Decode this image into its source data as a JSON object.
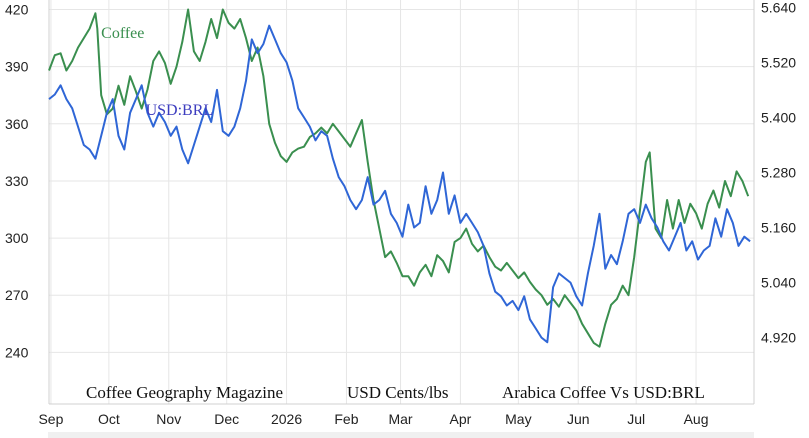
{
  "chart_data": {
    "type": "line",
    "x_axis": {
      "type": "time",
      "range": [
        "2025-08-31",
        "2026-08-31"
      ],
      "ticks": [
        {
          "label": "Sep",
          "date": "2025-09-01"
        },
        {
          "label": "Oct",
          "date": "2025-10-01"
        },
        {
          "label": "Nov",
          "date": "2025-11-01"
        },
        {
          "label": "Dec",
          "date": "2025-12-01"
        },
        {
          "label": "2026",
          "date": "2026-01-01"
        },
        {
          "label": "Feb",
          "date": "2026-02-01"
        },
        {
          "label": "Mar",
          "date": "2026-03-01"
        },
        {
          "label": "Apr",
          "date": "2026-04-01"
        },
        {
          "label": "May",
          "date": "2026-05-01"
        },
        {
          "label": "Jun",
          "date": "2026-06-01"
        },
        {
          "label": "Jul",
          "date": "2026-07-01"
        },
        {
          "label": "Aug",
          "date": "2026-08-01"
        }
      ]
    },
    "y_left": {
      "range": [
        215,
        425
      ],
      "ticks": [
        "420",
        "390",
        "360",
        "330",
        "300",
        "270",
        "240"
      ],
      "tick_values": [
        420,
        390,
        360,
        330,
        300,
        270,
        240
      ]
    },
    "y_right": {
      "range": [
        4.784,
        5.656
      ],
      "ticks": [
        "5.640",
        "5.520",
        "5.400",
        "5.280",
        "5.160",
        "5.040",
        "4.920"
      ],
      "tick_values": [
        5.64,
        5.52,
        5.4,
        5.28,
        5.16,
        5.04,
        4.92
      ]
    },
    "grid": true,
    "series": [
      {
        "name": "Coffee",
        "axis": "left",
        "color": "#3a8f4f",
        "points": [
          [
            "2025-08-31",
            388
          ],
          [
            "2025-09-03",
            396
          ],
          [
            "2025-09-06",
            397
          ],
          [
            "2025-09-09",
            388
          ],
          [
            "2025-09-12",
            393
          ],
          [
            "2025-09-15",
            400
          ],
          [
            "2025-09-18",
            405
          ],
          [
            "2025-09-21",
            410
          ],
          [
            "2025-09-24",
            418
          ],
          [
            "2025-09-25",
            410
          ],
          [
            "2025-09-27",
            375
          ],
          [
            "2025-09-30",
            365
          ],
          [
            "2025-10-03",
            368
          ],
          [
            "2025-10-06",
            380
          ],
          [
            "2025-10-09",
            370
          ],
          [
            "2025-10-12",
            385
          ],
          [
            "2025-10-15",
            377
          ],
          [
            "2025-10-18",
            368
          ],
          [
            "2025-10-21",
            378
          ],
          [
            "2025-10-24",
            393
          ],
          [
            "2025-10-27",
            398
          ],
          [
            "2025-10-30",
            392
          ],
          [
            "2025-11-02",
            381
          ],
          [
            "2025-11-05",
            390
          ],
          [
            "2025-11-08",
            403
          ],
          [
            "2025-11-11",
            420
          ],
          [
            "2025-11-14",
            398
          ],
          [
            "2025-11-17",
            393
          ],
          [
            "2025-11-20",
            403
          ],
          [
            "2025-11-23",
            415
          ],
          [
            "2025-11-26",
            405
          ],
          [
            "2025-11-29",
            420
          ],
          [
            "2025-12-02",
            413
          ],
          [
            "2025-12-05",
            410
          ],
          [
            "2025-12-08",
            415
          ],
          [
            "2025-12-11",
            405
          ],
          [
            "2025-12-14",
            393
          ],
          [
            "2025-12-17",
            400
          ],
          [
            "2025-12-20",
            385
          ],
          [
            "2025-12-23",
            360
          ],
          [
            "2025-12-26",
            350
          ],
          [
            "2025-12-29",
            343
          ],
          [
            "2026-01-01",
            340
          ],
          [
            "2026-01-04",
            345
          ],
          [
            "2026-01-07",
            347
          ],
          [
            "2026-01-10",
            348
          ],
          [
            "2026-01-13",
            353
          ],
          [
            "2026-01-16",
            355
          ],
          [
            "2026-01-19",
            358
          ],
          [
            "2026-01-22",
            355
          ],
          [
            "2026-01-25",
            360
          ],
          [
            "2026-01-28",
            356
          ],
          [
            "2026-01-31",
            352
          ],
          [
            "2026-02-03",
            348
          ],
          [
            "2026-02-06",
            355
          ],
          [
            "2026-02-09",
            362
          ],
          [
            "2026-02-12",
            340
          ],
          [
            "2026-02-15",
            320
          ],
          [
            "2026-02-18",
            305
          ],
          [
            "2026-02-21",
            290
          ],
          [
            "2026-02-24",
            293
          ],
          [
            "2026-02-27",
            287
          ],
          [
            "2026-03-02",
            280
          ],
          [
            "2026-03-05",
            280
          ],
          [
            "2026-03-08",
            275
          ],
          [
            "2026-03-11",
            282
          ],
          [
            "2026-03-14",
            286
          ],
          [
            "2026-03-17",
            280
          ],
          [
            "2026-03-20",
            291
          ],
          [
            "2026-03-23",
            288
          ],
          [
            "2026-03-26",
            282
          ],
          [
            "2026-03-29",
            298
          ],
          [
            "2026-04-01",
            300
          ],
          [
            "2026-04-04",
            305
          ],
          [
            "2026-04-07",
            297
          ],
          [
            "2026-04-10",
            293
          ],
          [
            "2026-04-13",
            296
          ],
          [
            "2026-04-16",
            290
          ],
          [
            "2026-04-19",
            285
          ],
          [
            "2026-04-22",
            283
          ],
          [
            "2026-04-25",
            287
          ],
          [
            "2026-04-28",
            283
          ],
          [
            "2026-05-01",
            279
          ],
          [
            "2026-05-04",
            282
          ],
          [
            "2026-05-07",
            277
          ],
          [
            "2026-05-10",
            273
          ],
          [
            "2026-05-13",
            270
          ],
          [
            "2026-05-16",
            265
          ],
          [
            "2026-05-19",
            268
          ],
          [
            "2026-05-22",
            264
          ],
          [
            "2026-05-25",
            270
          ],
          [
            "2026-05-28",
            266
          ],
          [
            "2026-05-31",
            262
          ],
          [
            "2026-06-03",
            255
          ],
          [
            "2026-06-06",
            250
          ],
          [
            "2026-06-09",
            245
          ],
          [
            "2026-06-12",
            243
          ],
          [
            "2026-06-15",
            255
          ],
          [
            "2026-06-18",
            265
          ],
          [
            "2026-06-21",
            268
          ],
          [
            "2026-06-24",
            275
          ],
          [
            "2026-06-27",
            270
          ],
          [
            "2026-06-30",
            290
          ],
          [
            "2026-07-03",
            315
          ],
          [
            "2026-07-06",
            340
          ],
          [
            "2026-07-08",
            345
          ],
          [
            "2026-07-11",
            305
          ],
          [
            "2026-07-14",
            300
          ],
          [
            "2026-07-17",
            320
          ],
          [
            "2026-07-20",
            305
          ],
          [
            "2026-07-23",
            320
          ],
          [
            "2026-07-26",
            308
          ],
          [
            "2026-07-29",
            318
          ],
          [
            "2026-08-01",
            313
          ],
          [
            "2026-08-04",
            305
          ],
          [
            "2026-08-07",
            318
          ],
          [
            "2026-08-10",
            325
          ],
          [
            "2026-08-13",
            316
          ],
          [
            "2026-08-16",
            330
          ],
          [
            "2026-08-19",
            322
          ],
          [
            "2026-08-22",
            335
          ],
          [
            "2026-08-25",
            330
          ],
          [
            "2026-08-28",
            322
          ]
        ]
      },
      {
        "name": "USD:BRL",
        "axis": "right",
        "color": "#2f66d6",
        "points": [
          [
            "2025-08-31",
            5.44
          ],
          [
            "2025-09-03",
            5.45
          ],
          [
            "2025-09-06",
            5.47
          ],
          [
            "2025-09-09",
            5.44
          ],
          [
            "2025-09-12",
            5.42
          ],
          [
            "2025-09-15",
            5.38
          ],
          [
            "2025-09-18",
            5.34
          ],
          [
            "2025-09-21",
            5.33
          ],
          [
            "2025-09-24",
            5.31
          ],
          [
            "2025-09-27",
            5.36
          ],
          [
            "2025-09-30",
            5.41
          ],
          [
            "2025-10-03",
            5.44
          ],
          [
            "2025-10-06",
            5.36
          ],
          [
            "2025-10-09",
            5.33
          ],
          [
            "2025-10-12",
            5.41
          ],
          [
            "2025-10-15",
            5.44
          ],
          [
            "2025-10-18",
            5.47
          ],
          [
            "2025-10-21",
            5.41
          ],
          [
            "2025-10-24",
            5.38
          ],
          [
            "2025-10-27",
            5.41
          ],
          [
            "2025-10-30",
            5.39
          ],
          [
            "2025-11-02",
            5.36
          ],
          [
            "2025-11-05",
            5.38
          ],
          [
            "2025-11-08",
            5.33
          ],
          [
            "2025-11-11",
            5.3
          ],
          [
            "2025-11-14",
            5.34
          ],
          [
            "2025-11-17",
            5.38
          ],
          [
            "2025-11-20",
            5.42
          ],
          [
            "2025-11-23",
            5.39
          ],
          [
            "2025-11-26",
            5.46
          ],
          [
            "2025-11-29",
            5.37
          ],
          [
            "2025-12-02",
            5.36
          ],
          [
            "2025-12-05",
            5.38
          ],
          [
            "2025-12-08",
            5.42
          ],
          [
            "2025-12-11",
            5.48
          ],
          [
            "2025-12-14",
            5.57
          ],
          [
            "2025-12-17",
            5.54
          ],
          [
            "2025-12-20",
            5.56
          ],
          [
            "2025-12-23",
            5.6
          ],
          [
            "2025-12-26",
            5.57
          ],
          [
            "2025-12-29",
            5.54
          ],
          [
            "2026-01-01",
            5.52
          ],
          [
            "2026-01-04",
            5.48
          ],
          [
            "2026-01-07",
            5.42
          ],
          [
            "2026-01-10",
            5.4
          ],
          [
            "2026-01-13",
            5.38
          ],
          [
            "2026-01-16",
            5.35
          ],
          [
            "2026-01-19",
            5.37
          ],
          [
            "2026-01-22",
            5.36
          ],
          [
            "2026-01-25",
            5.31
          ],
          [
            "2026-01-28",
            5.27
          ],
          [
            "2026-01-31",
            5.25
          ],
          [
            "2026-02-03",
            5.22
          ],
          [
            "2026-02-06",
            5.2
          ],
          [
            "2026-02-09",
            5.22
          ],
          [
            "2026-02-12",
            5.27
          ],
          [
            "2026-02-15",
            5.21
          ],
          [
            "2026-02-18",
            5.22
          ],
          [
            "2026-02-21",
            5.24
          ],
          [
            "2026-02-24",
            5.19
          ],
          [
            "2026-02-27",
            5.17
          ],
          [
            "2026-03-02",
            5.14
          ],
          [
            "2026-03-05",
            5.21
          ],
          [
            "2026-03-08",
            5.16
          ],
          [
            "2026-03-11",
            5.17
          ],
          [
            "2026-03-14",
            5.25
          ],
          [
            "2026-03-17",
            5.19
          ],
          [
            "2026-03-20",
            5.22
          ],
          [
            "2026-03-23",
            5.28
          ],
          [
            "2026-03-26",
            5.19
          ],
          [
            "2026-03-29",
            5.23
          ],
          [
            "2026-04-01",
            5.17
          ],
          [
            "2026-04-04",
            5.19
          ],
          [
            "2026-04-07",
            5.17
          ],
          [
            "2026-04-10",
            5.15
          ],
          [
            "2026-04-13",
            5.12
          ],
          [
            "2026-04-16",
            5.06
          ],
          [
            "2026-04-19",
            5.02
          ],
          [
            "2026-04-22",
            5.01
          ],
          [
            "2026-04-25",
            4.99
          ],
          [
            "2026-04-28",
            5.0
          ],
          [
            "2026-05-01",
            4.98
          ],
          [
            "2026-05-04",
            5.01
          ],
          [
            "2026-05-07",
            4.96
          ],
          [
            "2026-05-10",
            4.94
          ],
          [
            "2026-05-13",
            4.92
          ],
          [
            "2026-05-16",
            4.91
          ],
          [
            "2026-05-19",
            5.03
          ],
          [
            "2026-05-22",
            5.06
          ],
          [
            "2026-05-25",
            5.05
          ],
          [
            "2026-05-28",
            5.04
          ],
          [
            "2026-05-31",
            5.01
          ],
          [
            "2026-06-03",
            4.99
          ],
          [
            "2026-06-06",
            5.06
          ],
          [
            "2026-06-09",
            5.12
          ],
          [
            "2026-06-12",
            5.19
          ],
          [
            "2026-06-15",
            5.07
          ],
          [
            "2026-06-18",
            5.1
          ],
          [
            "2026-06-21",
            5.08
          ],
          [
            "2026-06-24",
            5.13
          ],
          [
            "2026-06-27",
            5.19
          ],
          [
            "2026-06-30",
            5.2
          ],
          [
            "2026-07-03",
            5.17
          ],
          [
            "2026-07-06",
            5.21
          ],
          [
            "2026-07-09",
            5.18
          ],
          [
            "2026-07-12",
            5.16
          ],
          [
            "2026-07-15",
            5.13
          ],
          [
            "2026-07-18",
            5.11
          ],
          [
            "2026-07-21",
            5.14
          ],
          [
            "2026-07-24",
            5.17
          ],
          [
            "2026-07-27",
            5.11
          ],
          [
            "2026-07-30",
            5.13
          ],
          [
            "2026-08-02",
            5.09
          ],
          [
            "2026-08-05",
            5.11
          ],
          [
            "2026-08-08",
            5.12
          ],
          [
            "2026-08-11",
            5.18
          ],
          [
            "2026-08-14",
            5.14
          ],
          [
            "2026-08-17",
            5.2
          ],
          [
            "2026-08-20",
            5.17
          ],
          [
            "2026-08-23",
            5.12
          ],
          [
            "2026-08-26",
            5.14
          ],
          [
            "2026-08-29",
            5.13
          ]
        ]
      }
    ],
    "series_labels": [
      {
        "text": "Coffee",
        "color": "#3a8f4f",
        "anchor_date": "2025-09-27",
        "anchor_value": 405,
        "axis": "left"
      },
      {
        "text": "USD:BRL",
        "color": "#3d3dbf",
        "anchor_date": "2025-10-20",
        "anchor_value": 5.405,
        "axis": "right"
      }
    ],
    "footer_texts": [
      "Coffee Geography Magazine",
      "USD Cents/lbs",
      "Arabica Coffee  Vs  USD:BRL"
    ]
  }
}
